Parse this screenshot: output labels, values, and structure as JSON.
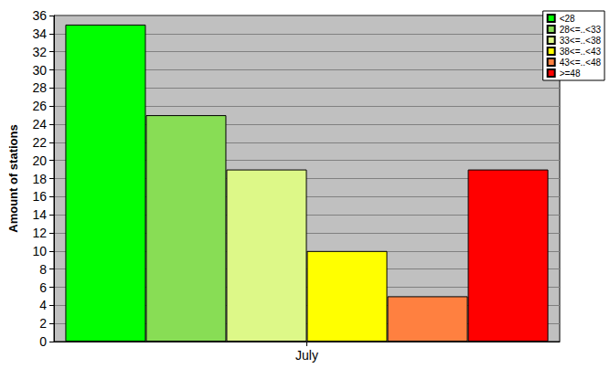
{
  "chart_data": {
    "type": "bar",
    "categories": [
      "July"
    ],
    "series": [
      {
        "name": "<28",
        "color": "#00ff00",
        "values": [
          35
        ]
      },
      {
        "name": "28<=..<33",
        "color": "#88dd55",
        "values": [
          25
        ]
      },
      {
        "name": "33<=..<38",
        "color": "#ddf888",
        "values": [
          19
        ]
      },
      {
        "name": "38<=..<43",
        "color": "#ffff00",
        "values": [
          10
        ]
      },
      {
        "name": "43<=..<48",
        "color": "#ff8040",
        "values": [
          5
        ]
      },
      {
        "name": ">=48",
        "color": "#ff0000",
        "values": [
          19
        ]
      }
    ],
    "ylabel": "Amount of stations",
    "ylim": [
      0,
      36
    ],
    "yticks": [
      0,
      2,
      4,
      6,
      8,
      10,
      12,
      14,
      16,
      18,
      20,
      22,
      24,
      26,
      28,
      30,
      32,
      34,
      36
    ],
    "grid": true,
    "legend": "upper right"
  }
}
